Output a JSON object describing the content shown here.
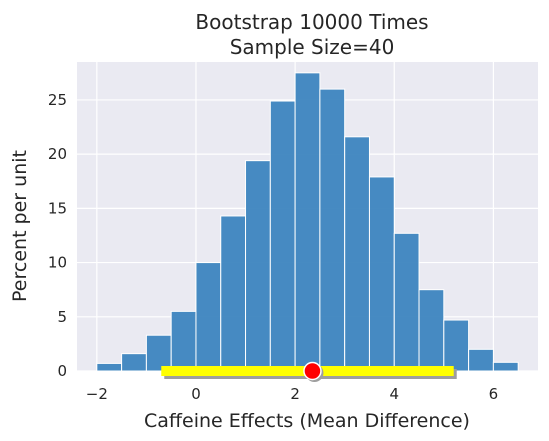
{
  "chart_data": {
    "type": "bar",
    "title_lines": [
      "Bootstrap 10000 Times",
      "Sample Size=40"
    ],
    "xlabel": "Caffeine Effects (Mean Difference)",
    "ylabel": "Percent per unit",
    "xlim": [
      -2.4,
      6.9
    ],
    "ylim": [
      0,
      28.5
    ],
    "x_ticks": [
      -2,
      0,
      2,
      4,
      6
    ],
    "x_tick_labels": [
      "−2",
      "0",
      "2",
      "4",
      "6"
    ],
    "y_ticks": [
      0,
      5,
      10,
      15,
      20,
      25
    ],
    "y_tick_labels": [
      "0",
      "5",
      "10",
      "15",
      "20",
      "25"
    ],
    "bins": {
      "edges": [
        -2.0,
        -1.5,
        -1.0,
        -0.5,
        0.0,
        0.5,
        1.0,
        1.5,
        2.0,
        2.5,
        3.0,
        3.5,
        4.0,
        4.5,
        5.0,
        5.5,
        6.0,
        6.5
      ],
      "values": [
        0.7,
        1.6,
        3.3,
        5.5,
        10.0,
        14.3,
        19.4,
        24.9,
        27.5,
        26.0,
        21.6,
        17.9,
        12.7,
        7.5,
        4.7,
        2.0,
        0.8
      ]
    },
    "interval": {
      "low": -0.7,
      "high": 5.2,
      "y": 0
    },
    "point": {
      "x": 2.35,
      "y": 0
    },
    "grid": true,
    "colors": {
      "background": "#eaeaf2",
      "bar": "#3d85bf",
      "bar_edge": "#ffffff",
      "grid": "#ffffff",
      "interval": "#ffff00",
      "interval_shadow": "#9e9e9e",
      "point": "#ff0000",
      "point_edge": "#ffffff",
      "text": "#262626"
    }
  }
}
